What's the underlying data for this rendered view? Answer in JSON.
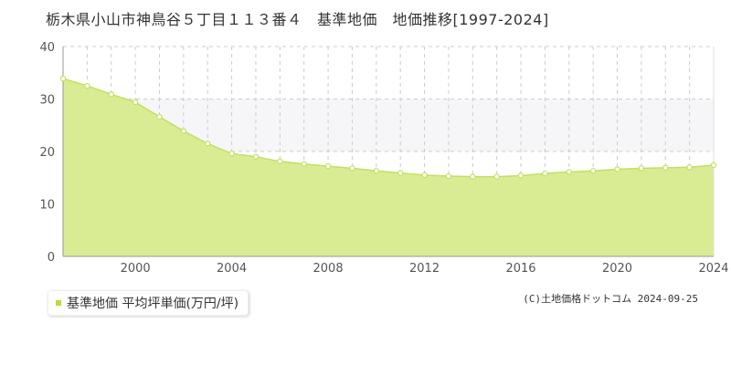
{
  "title": "栃木県小山市神鳥谷５丁目１１３番４　基準地価　地価推移[1997-2024]",
  "credit": "(C)土地価格ドットコム 2024-09-25",
  "colors": {
    "fill": "#d9ec94",
    "line": "#c3e060",
    "point_fill": "#ffffff",
    "band": "#f6f6f9",
    "grid": "#cccccc",
    "legend_swatch": "#b8dc3c"
  },
  "chart_data": {
    "type": "area",
    "title": "栃木県小山市神鳥谷５丁目１１３番４　基準地価　地価推移[1997-2024]",
    "xlabel": "",
    "ylabel": "",
    "xlim": [
      1997,
      2024
    ],
    "ylim": [
      0,
      40
    ],
    "x_ticks": [
      "2000",
      "2004",
      "2008",
      "2012",
      "2016",
      "2020",
      "2024"
    ],
    "y_ticks": [
      "0",
      "10",
      "20",
      "30",
      "40"
    ],
    "grid": true,
    "legend_position": "bottom-left",
    "series": [
      {
        "name": "基準地価 平均坪単価(万円/坪)",
        "x": [
          1997,
          1998,
          1999,
          2000,
          2001,
          2002,
          2003,
          2004,
          2005,
          2006,
          2007,
          2008,
          2009,
          2010,
          2011,
          2012,
          2013,
          2014,
          2015,
          2016,
          2017,
          2018,
          2019,
          2020,
          2021,
          2022,
          2023,
          2024
        ],
        "values": [
          33.9,
          32.5,
          30.9,
          29.4,
          26.6,
          23.9,
          21.5,
          19.6,
          19.0,
          18.1,
          17.6,
          17.2,
          16.8,
          16.3,
          15.9,
          15.5,
          15.3,
          15.2,
          15.2,
          15.4,
          15.8,
          16.1,
          16.3,
          16.6,
          16.8,
          16.9,
          17.0,
          17.4
        ]
      }
    ]
  }
}
